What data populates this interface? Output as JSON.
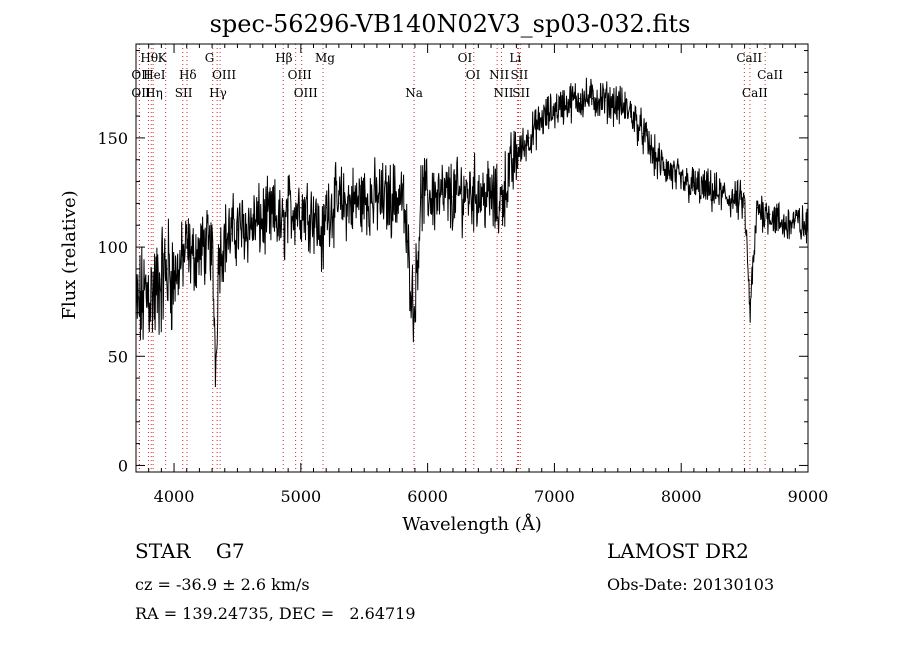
{
  "header": {
    "title": "spec-56296-VB140N02V3_sp03-032.fits"
  },
  "info": {
    "classification": "STAR    G7",
    "survey": "LAMOST DR2",
    "cz": "cz = -36.9 ± 2.6 km/s",
    "obs_date": "Obs-Date: 20130103",
    "radec": "RA = 139.24735, DEC =   2.64719"
  },
  "colors": {
    "spectrum": "#000000",
    "line_markers": "#cc3333",
    "axes": "#000000"
  },
  "chart_data": {
    "type": "line",
    "title": "spec-56296-VB140N02V3_sp03-032.fits",
    "xlabel": "Wavelength (Å)",
    "ylabel": "Flux (relative)",
    "xlim": [
      3700,
      9000
    ],
    "ylim": [
      -3,
      193
    ],
    "xticks": [
      4000,
      5000,
      6000,
      7000,
      8000,
      9000
    ],
    "yticks": [
      0,
      50,
      100,
      150
    ],
    "grid": false,
    "series": [
      {
        "values_x": [
          3700,
          3750,
          3800,
          3850,
          3900,
          3950,
          4000,
          4050,
          4100,
          4150,
          4200,
          4250,
          4300,
          4330,
          4350,
          4400,
          4450,
          4500,
          4600,
          4700,
          4800,
          4861,
          4900,
          5000,
          5100,
          5175,
          5200,
          5300,
          5400,
          5500,
          5600,
          5700,
          5800,
          5893,
          5950,
          6000,
          6100,
          6200,
          6300,
          6400,
          6500,
          6563,
          6600,
          6700,
          6800,
          6900,
          7000,
          7100,
          7200,
          7300,
          7400,
          7500,
          7600,
          7700,
          7800,
          7900,
          8000,
          8100,
          8200,
          8300,
          8400,
          8500,
          8542,
          8600,
          8700,
          8800,
          8900,
          9000
        ],
        "values_y": [
          70,
          75,
          80,
          78,
          85,
          90,
          85,
          92,
          100,
          95,
          98,
          100,
          100,
          45,
          95,
          104,
          106,
          108,
          110,
          112,
          114,
          108,
          117,
          118,
          116,
          102,
          118,
          120,
          120,
          122,
          122,
          122,
          124,
          70,
          124,
          124,
          123,
          123,
          125,
          125,
          123,
          118,
          126,
          142,
          150,
          158,
          163,
          166,
          168,
          168,
          167,
          165,
          162,
          152,
          140,
          135,
          130,
          128,
          126,
          124,
          122,
          120,
          70,
          118,
          115,
          110,
          112,
          108
        ]
      }
    ],
    "line_markers": [
      {
        "label": "Hθ",
        "x": 3798,
        "row": 0,
        "align": "start"
      },
      {
        "label": "K",
        "x": 3934,
        "row": 0,
        "align": "start"
      },
      {
        "label": "G",
        "x": 4305,
        "row": 0,
        "align": "start"
      },
      {
        "label": "Hβ",
        "x": 4861,
        "row": 0,
        "align": "start"
      },
      {
        "label": "Mg",
        "x": 5175,
        "row": 0,
        "align": "start"
      },
      {
        "label": "OI",
        "x": 6300,
        "row": 0,
        "align": "start"
      },
      {
        "label": "Li",
        "x": 6708,
        "row": 0,
        "align": "start"
      },
      {
        "label": "CaII",
        "x": 8498,
        "row": 0,
        "align": "start"
      },
      {
        "label": "OII",
        "x": 3727,
        "row": 1,
        "align": "start"
      },
      {
        "label": "HeI",
        "x": 3820,
        "row": 1,
        "align": "start"
      },
      {
        "label": "Hδ",
        "x": 4102,
        "row": 1,
        "align": "start"
      },
      {
        "label": "OIII",
        "x": 4363,
        "row": 1,
        "align": "start"
      },
      {
        "label": "OIII",
        "x": 4959,
        "row": 1,
        "align": "start"
      },
      {
        "label": "OI",
        "x": 6364,
        "row": 1,
        "align": "start"
      },
      {
        "label": "NII",
        "x": 6548,
        "row": 1,
        "align": "start"
      },
      {
        "label": "SII",
        "x": 6717,
        "row": 1,
        "align": "start"
      },
      {
        "label": "CaII",
        "x": 8662,
        "row": 1,
        "align": "start"
      },
      {
        "label": "OII",
        "x": 3727,
        "row": 2,
        "align": "start"
      },
      {
        "label": "Hη",
        "x": 3835,
        "row": 2,
        "align": "start"
      },
      {
        "label": "SII",
        "x": 4069,
        "row": 2,
        "align": "start"
      },
      {
        "label": "Hγ",
        "x": 4340,
        "row": 2,
        "align": "start"
      },
      {
        "label": "OIII",
        "x": 5007,
        "row": 2,
        "align": "start"
      },
      {
        "label": "Na",
        "x": 5893,
        "row": 2,
        "align": "center"
      },
      {
        "label": "NII",
        "x": 6583,
        "row": 2,
        "align": "start"
      },
      {
        "label": "SII",
        "x": 6731,
        "row": 2,
        "align": "start"
      },
      {
        "label": "CaII",
        "x": 8542,
        "row": 2,
        "align": "start"
      }
    ]
  }
}
